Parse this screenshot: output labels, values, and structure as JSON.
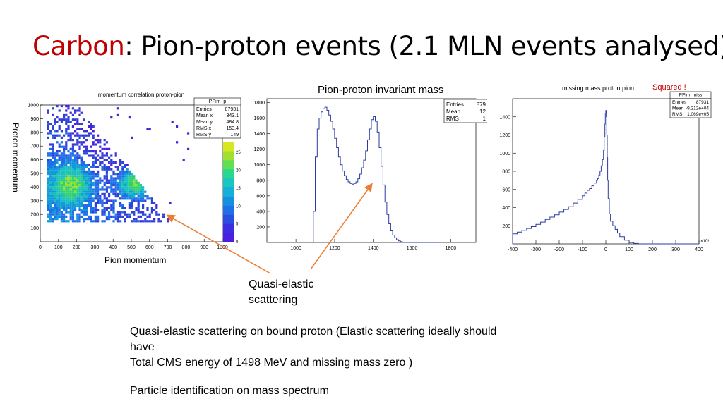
{
  "slide": {
    "title_highlight": "Carbon",
    "title_rest": ": Pion-proton events (2.1 MLN events analysed)",
    "hist2_caption": "Pion-proton invariant mass",
    "squared_note": "Squared !",
    "y_axis_caption": "Proton momentum",
    "x_axis_caption": "Pion momentum",
    "arrow_label_line1": "Quasi-elastic",
    "arrow_label_line2": "scattering",
    "body_line1": "Quasi-elastic scattering on bound proton (Elastic scattering ideally should",
    "body_line2": "have",
    "body_line3": "Total CMS energy of 1498 MeV and missing mass zero )",
    "body_line4": "Particle identification on mass spectrum",
    "accent_color": "#c00000",
    "arrow_color": "#ed7d31"
  },
  "chart_data": [
    {
      "type": "heatmap",
      "title": "momentum correlation proton-pion",
      "xlabel": "Pion momentum",
      "ylabel": "Proton momentum",
      "x_ticks": [
        "0",
        "100",
        "200",
        "300",
        "400",
        "500",
        "600",
        "700",
        "800",
        "900",
        "1000"
      ],
      "y_ticks": [
        "100",
        "200",
        "300",
        "400",
        "500",
        "600",
        "700",
        "800",
        "900",
        "1000"
      ],
      "xlim": [
        0,
        1000
      ],
      "ylim": [
        0,
        1000
      ],
      "colorbar_ticks": [
        "0",
        "5",
        "10",
        "15",
        "20",
        "25"
      ],
      "stats": {
        "name": "PPim_p",
        "rows": [
          {
            "label": "Entries",
            "value": "87931"
          },
          {
            "label": "Mean x",
            "value": "343.1"
          },
          {
            "label": "Mean y",
            "value": "484.8"
          },
          {
            "label": "RMS x",
            "value": "153.4"
          },
          {
            "label": "RMS y",
            "value": "149"
          }
        ]
      }
    },
    {
      "type": "line",
      "title": "",
      "xlabel": "",
      "ylabel": "",
      "xlim": [
        850,
        1930
      ],
      "ylim": [
        0,
        1850
      ],
      "x_ticks": [
        "1000",
        "1200",
        "1400",
        "1600",
        "1800"
      ],
      "y_ticks": [
        "200",
        "400",
        "600",
        "800",
        "1000",
        "1200",
        "1400",
        "1600",
        "1800"
      ],
      "series": [
        {
          "x": [
            1080,
            1090,
            1100,
            1110,
            1120,
            1130,
            1140,
            1150,
            1160,
            1170,
            1180,
            1190,
            1200,
            1210,
            1220,
            1230,
            1240,
            1250,
            1260,
            1270,
            1280,
            1290,
            1300,
            1310,
            1320,
            1330,
            1340,
            1350,
            1360,
            1370,
            1380,
            1390,
            1400,
            1410,
            1420,
            1430,
            1440,
            1450,
            1460,
            1470,
            1480,
            1490,
            1500,
            1510,
            1520,
            1530,
            1540,
            1550,
            1560,
            1570,
            1580,
            1590,
            1600,
            1620,
            1650,
            1700,
            1750
          ],
          "y": [
            0,
            400,
            1100,
            1460,
            1600,
            1680,
            1720,
            1740,
            1700,
            1640,
            1560,
            1460,
            1340,
            1220,
            1100,
            1000,
            920,
            860,
            810,
            780,
            760,
            750,
            760,
            780,
            820,
            880,
            960,
            1060,
            1180,
            1320,
            1460,
            1580,
            1620,
            1560,
            1420,
            1220,
            980,
            740,
            520,
            360,
            240,
            150,
            95,
            60,
            35,
            20,
            10,
            4,
            0,
            0,
            0,
            0,
            0,
            0,
            0,
            0,
            0
          ]
        }
      ],
      "stats": {
        "rows": [
          {
            "label": "Entries",
            "value": "879"
          },
          {
            "label": "Mean",
            "value": "12"
          },
          {
            "label": "RMS",
            "value": "1"
          }
        ]
      }
    },
    {
      "type": "line",
      "title": "missing mass proton pion",
      "xlabel": "",
      "ylabel": "",
      "xlim": [
        -400,
        400
      ],
      "ylim": [
        0,
        1600
      ],
      "x_ticks": [
        "-400",
        "-300",
        "-200",
        "-100",
        "0",
        "100",
        "200",
        "300",
        "400"
      ],
      "x_exponent": "×10³",
      "y_ticks": [
        "200",
        "400",
        "600",
        "800",
        "1000",
        "1200",
        "1400"
      ],
      "series": [
        {
          "x": [
            -400,
            -380,
            -360,
            -340,
            -320,
            -300,
            -280,
            -260,
            -240,
            -220,
            -200,
            -180,
            -160,
            -140,
            -120,
            -100,
            -90,
            -80,
            -70,
            -60,
            -50,
            -40,
            -35,
            -30,
            -25,
            -20,
            -15,
            -10,
            -7,
            -4,
            -2,
            0,
            2,
            4,
            6,
            8,
            10,
            15,
            20,
            30,
            40,
            50,
            60,
            80,
            100,
            120,
            140,
            160,
            180,
            200,
            250,
            300,
            350,
            400
          ],
          "y": [
            110,
            130,
            150,
            170,
            190,
            215,
            240,
            270,
            295,
            320,
            350,
            380,
            410,
            450,
            490,
            530,
            560,
            590,
            610,
            640,
            670,
            700,
            720,
            760,
            800,
            860,
            930,
            1030,
            1180,
            1320,
            1440,
            1470,
            1400,
            1200,
            950,
            700,
            500,
            330,
            250,
            200,
            160,
            120,
            80,
            40,
            15,
            5,
            0,
            0,
            0,
            0,
            0,
            0,
            0,
            0
          ]
        }
      ],
      "stats": {
        "name": "PPim_miss",
        "rows": [
          {
            "label": "Entries",
            "value": "87931"
          },
          {
            "label": "Mean",
            "value": "-9.212e+04"
          },
          {
            "label": "RMS",
            "value": "1.069e+05"
          }
        ]
      }
    }
  ]
}
